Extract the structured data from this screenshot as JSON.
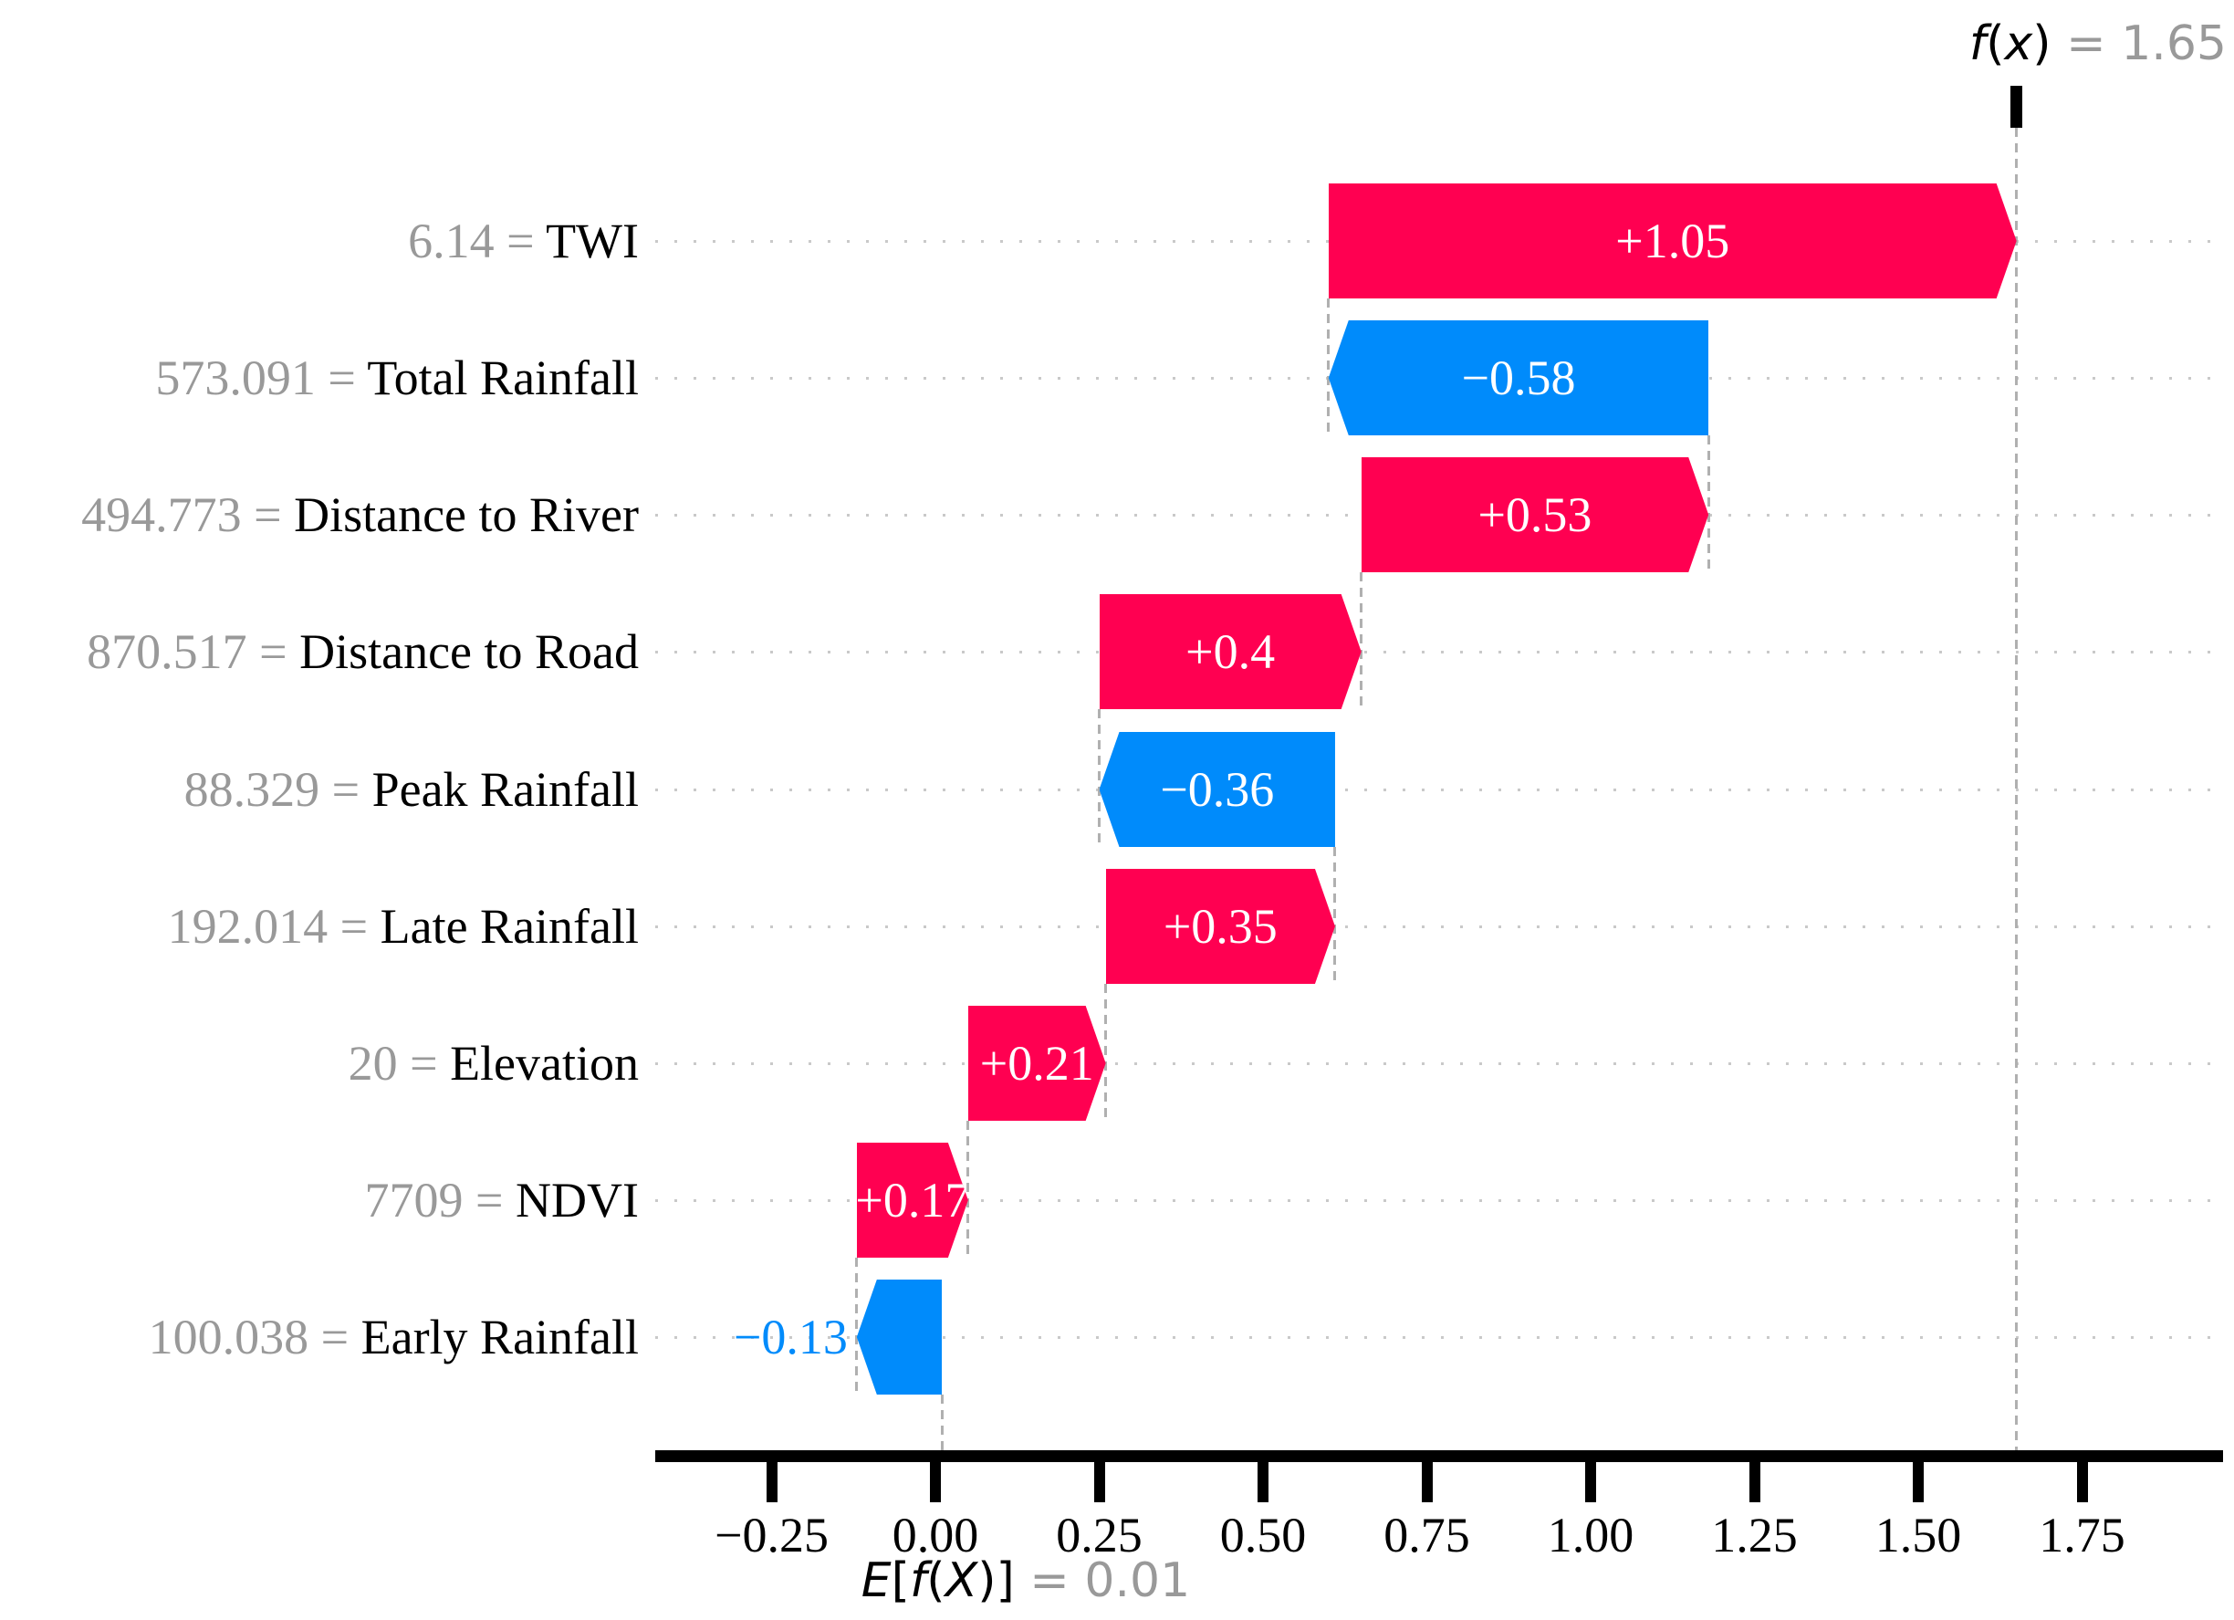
{
  "figure": {
    "background": "#ffffff"
  },
  "chart_data": {
    "type": "bar",
    "variant": "shap-waterfall",
    "title": "",
    "fx_symbol": "f(x)",
    "fx_value": 1.65,
    "fx_value_label": "1.65",
    "base_symbol": "E[f(X)]",
    "base_value": 0.01,
    "base_value_label": "0.01",
    "separator": " = ",
    "legend_position": "none",
    "grid": "dotted-horizontal",
    "xlim": [
      -0.43,
      1.97
    ],
    "features": [
      {
        "name": "TWI",
        "value": "6.14",
        "contribution": 1.05,
        "label": "+1.05",
        "label_outside": false
      },
      {
        "name": "Total Rainfall",
        "value": "573.091",
        "contribution": -0.58,
        "label": "−0.58",
        "label_outside": false
      },
      {
        "name": "Distance to River",
        "value": "494.773",
        "contribution": 0.53,
        "label": "+0.53",
        "label_outside": false
      },
      {
        "name": "Distance to Road",
        "value": "870.517",
        "contribution": 0.4,
        "label": "+0.4",
        "label_outside": false
      },
      {
        "name": "Peak Rainfall",
        "value": "88.329",
        "contribution": -0.36,
        "label": "−0.36",
        "label_outside": false
      },
      {
        "name": "Late Rainfall",
        "value": "192.014",
        "contribution": 0.35,
        "label": "+0.35",
        "label_outside": false
      },
      {
        "name": "Elevation",
        "value": "20",
        "contribution": 0.21,
        "label": "+0.21",
        "label_outside": false
      },
      {
        "name": "NDVI",
        "value": "7709",
        "contribution": 0.17,
        "label": "+0.17",
        "label_outside": false
      },
      {
        "name": "Early Rainfall",
        "value": "100.038",
        "contribution": -0.13,
        "label": "−0.13",
        "label_outside": true
      }
    ],
    "x_ticks": [
      {
        "value": -0.25,
        "label": "−0.25"
      },
      {
        "value": 0.0,
        "label": "0.00"
      },
      {
        "value": 0.25,
        "label": "0.25"
      },
      {
        "value": 0.5,
        "label": "0.50"
      },
      {
        "value": 0.75,
        "label": "0.75"
      },
      {
        "value": 1.0,
        "label": "1.00"
      },
      {
        "value": 1.25,
        "label": "1.25"
      },
      {
        "value": 1.5,
        "label": "1.50"
      },
      {
        "value": 1.75,
        "label": "1.75"
      }
    ],
    "colors": {
      "positive": "#ff0051",
      "negative": "#008bfb",
      "bar_label": "#ffffff",
      "muted_text": "#999999",
      "gridline": "#c9c9c9",
      "connector": "#b0b0b0",
      "axis": "#000000"
    }
  }
}
